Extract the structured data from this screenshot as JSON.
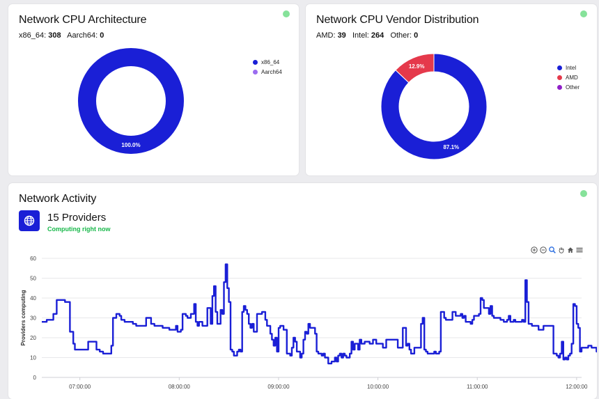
{
  "arch_card": {
    "title": "Network CPU Architecture",
    "stats": [
      {
        "label": "x86_64:",
        "value": "308"
      },
      {
        "label": "Aarch64:",
        "value": "0"
      }
    ]
  },
  "vendor_card": {
    "title": "Network CPU Vendor Distribution",
    "stats": [
      {
        "label": "AMD:",
        "value": "39"
      },
      {
        "label": "Intel:",
        "value": "264"
      },
      {
        "label": "Other:",
        "value": "0"
      }
    ]
  },
  "activity_card": {
    "title": "Network Activity",
    "providers_count": "15 Providers",
    "providers_status": "Computing right now"
  },
  "colors": {
    "primary": "#1a1fd6",
    "amd": "#e5394b",
    "other": "#8f1fc8",
    "aarch": "#9b6cf0",
    "status_green": "#86e29a",
    "computing_text": "#18b84a"
  },
  "chart_data": [
    {
      "type": "pie",
      "title": "",
      "categories": [
        "x86_64",
        "Aarch64"
      ],
      "values": [
        100.0,
        0.0
      ],
      "slice_labels": [
        "100.0%",
        ""
      ],
      "legend_position": "top-right",
      "colors": [
        "#1a1fd6",
        "#9b6cf0"
      ]
    },
    {
      "type": "pie",
      "title": "",
      "categories": [
        "Intel",
        "AMD",
        "Other"
      ],
      "values": [
        87.1,
        12.9,
        0.0
      ],
      "slice_labels": [
        "87.1%",
        "12.9%",
        ""
      ],
      "legend_position": "top-right",
      "colors": [
        "#1a1fd6",
        "#e5394b",
        "#8f1fc8"
      ]
    },
    {
      "type": "line",
      "title": "",
      "xlabel": "",
      "ylabel": "Providers computing",
      "ylim": [
        0,
        60
      ],
      "yticks": [
        "0",
        "10",
        "20",
        "30",
        "40",
        "50",
        "60"
      ],
      "xticks": [
        "07:00:00",
        "08:00:00",
        "09:00:00",
        "10:00:00",
        "11:00:00",
        "12:00:00"
      ],
      "xlim_minutes": [
        -23,
        303
      ],
      "grid": true,
      "series": [
        {
          "color": "#1a1fd6",
          "points": [
            [
              -23,
              28
            ],
            [
              -20,
              29
            ],
            [
              -18,
              29
            ],
            [
              -16,
              32
            ],
            [
              -14,
              39
            ],
            [
              -12,
              39
            ],
            [
              -9,
              38
            ],
            [
              -7,
              38
            ],
            [
              -6,
              23
            ],
            [
              -4,
              17
            ],
            [
              -3,
              14
            ],
            [
              -1,
              14
            ],
            [
              3,
              14
            ],
            [
              5,
              18
            ],
            [
              9,
              18
            ],
            [
              10,
              14
            ],
            [
              12,
              13
            ],
            [
              14,
              12
            ],
            [
              18,
              12
            ],
            [
              19,
              16
            ],
            [
              20,
              30
            ],
            [
              22,
              32
            ],
            [
              24,
              31
            ],
            [
              25,
              29
            ],
            [
              27,
              28
            ],
            [
              30,
              28
            ],
            [
              32,
              27
            ],
            [
              34,
              26
            ],
            [
              38,
              26
            ],
            [
              40,
              30
            ],
            [
              42,
              30
            ],
            [
              43,
              27
            ],
            [
              45,
              26
            ],
            [
              49,
              26
            ],
            [
              50,
              25
            ],
            [
              53,
              25
            ],
            [
              54,
              24
            ],
            [
              57,
              24
            ],
            [
              58,
              26
            ],
            [
              59,
              23
            ],
            [
              61,
              24
            ],
            [
              62,
              32
            ],
            [
              64,
              31
            ],
            [
              65,
              30
            ],
            [
              66,
              30
            ],
            [
              67,
              32
            ],
            [
              69,
              37
            ],
            [
              70,
              28
            ],
            [
              71,
              26
            ],
            [
              72,
              28
            ],
            [
              74,
              26
            ],
            [
              76,
              26
            ],
            [
              77,
              35
            ],
            [
              78,
              35
            ],
            [
              79,
              27
            ],
            [
              80,
              41
            ],
            [
              81,
              46
            ],
            [
              82,
              33
            ],
            [
              83,
              27
            ],
            [
              85,
              34
            ],
            [
              86,
              32
            ],
            [
              87,
              48
            ],
            [
              88,
              57
            ],
            [
              89,
              45
            ],
            [
              90,
              38
            ],
            [
              91,
              14
            ],
            [
              92,
              13
            ],
            [
              93,
              11
            ],
            [
              95,
              13
            ],
            [
              96,
              14
            ],
            [
              97,
              13
            ],
            [
              98,
              33
            ],
            [
              99,
              36
            ],
            [
              100,
              34
            ],
            [
              101,
              32
            ],
            [
              102,
              27
            ],
            [
              103,
              25
            ],
            [
              104,
              27
            ],
            [
              105,
              23
            ],
            [
              107,
              32
            ],
            [
              108,
              32
            ],
            [
              110,
              33
            ],
            [
              112,
              29
            ],
            [
              113,
              26
            ],
            [
              114,
              26
            ],
            [
              115,
              22
            ],
            [
              116,
              19
            ],
            [
              117,
              16
            ],
            [
              118,
              20
            ],
            [
              119,
              13
            ],
            [
              120,
              25
            ],
            [
              121,
              26
            ],
            [
              123,
              24
            ],
            [
              125,
              12
            ],
            [
              127,
              11
            ],
            [
              128,
              15
            ],
            [
              129,
              20
            ],
            [
              130,
              18
            ],
            [
              131,
              13
            ],
            [
              133,
              10
            ],
            [
              134,
              12
            ],
            [
              135,
              19
            ],
            [
              136,
              23
            ],
            [
              137,
              22
            ],
            [
              138,
              27
            ],
            [
              139,
              25
            ],
            [
              141,
              25
            ],
            [
              142,
              22
            ],
            [
              143,
              13
            ],
            [
              144,
              12
            ],
            [
              146,
              11
            ],
            [
              147,
              12
            ],
            [
              148,
              10
            ],
            [
              149,
              10
            ],
            [
              150,
              7
            ],
            [
              152,
              8
            ],
            [
              154,
              10
            ],
            [
              155,
              8
            ],
            [
              156,
              11
            ],
            [
              157,
              12
            ],
            [
              158,
              10
            ],
            [
              159,
              12
            ],
            [
              160,
              11
            ],
            [
              161,
              10
            ],
            [
              163,
              12
            ],
            [
              164,
              18
            ],
            [
              165,
              14
            ],
            [
              166,
              17
            ],
            [
              167,
              17
            ],
            [
              168,
              14
            ],
            [
              169,
              19
            ],
            [
              170,
              17
            ],
            [
              172,
              18
            ],
            [
              175,
              17
            ],
            [
              177,
              19
            ],
            [
              179,
              17
            ],
            [
              181,
              17
            ],
            [
              183,
              15
            ],
            [
              185,
              19
            ],
            [
              190,
              19
            ],
            [
              192,
              15
            ],
            [
              194,
              15
            ],
            [
              195,
              25
            ],
            [
              196,
              25
            ],
            [
              197,
              16
            ],
            [
              198,
              17
            ],
            [
              199,
              14
            ],
            [
              200,
              12
            ],
            [
              202,
              15
            ],
            [
              205,
              15
            ],
            [
              206,
              27
            ],
            [
              207,
              30
            ],
            [
              208,
              14
            ],
            [
              209,
              13
            ],
            [
              210,
              12
            ],
            [
              212,
              12
            ],
            [
              214,
              13
            ],
            [
              215,
              12
            ],
            [
              217,
              13
            ],
            [
              218,
              33
            ],
            [
              219,
              33
            ],
            [
              220,
              30
            ],
            [
              221,
              29
            ],
            [
              223,
              29
            ],
            [
              225,
              33
            ],
            [
              227,
              31
            ],
            [
              228,
              31
            ],
            [
              230,
              32
            ],
            [
              231,
              30
            ],
            [
              232,
              31
            ],
            [
              233,
              28
            ],
            [
              236,
              27
            ],
            [
              237,
              29
            ],
            [
              238,
              31
            ],
            [
              240,
              31
            ],
            [
              241,
              32
            ],
            [
              242,
              40
            ],
            [
              243,
              39
            ],
            [
              244,
              35
            ],
            [
              246,
              35
            ],
            [
              247,
              32
            ],
            [
              248,
              36
            ],
            [
              249,
              31
            ],
            [
              250,
              30
            ],
            [
              253,
              30
            ],
            [
              254,
              29
            ],
            [
              256,
              28
            ],
            [
              258,
              29
            ],
            [
              259,
              31
            ],
            [
              260,
              28
            ],
            [
              262,
              29
            ],
            [
              263,
              28
            ],
            [
              265,
              28
            ],
            [
              267,
              29
            ],
            [
              268,
              28
            ],
            [
              269,
              49
            ],
            [
              270,
              38
            ],
            [
              271,
              27
            ],
            [
              273,
              26
            ],
            [
              276,
              26
            ],
            [
              277,
              24
            ],
            [
              280,
              26
            ],
            [
              285,
              26
            ],
            [
              286,
              12
            ],
            [
              288,
              11
            ],
            [
              289,
              10
            ],
            [
              290,
              12
            ],
            [
              291,
              18
            ],
            [
              292,
              9
            ],
            [
              293,
              10
            ],
            [
              294,
              9
            ],
            [
              295,
              11
            ],
            [
              296,
              12
            ],
            [
              297,
              17
            ],
            [
              298,
              37
            ],
            [
              299,
              36
            ],
            [
              300,
              27
            ],
            [
              301,
              25
            ],
            [
              302,
              13
            ],
            [
              303,
              15
            ],
            [
              306,
              15
            ],
            [
              307,
              16
            ],
            [
              309,
              15
            ],
            [
              312,
              13
            ],
            [
              314,
              15
            ],
            [
              316,
              12
            ],
            [
              318,
              12
            ],
            [
              319,
              21
            ],
            [
              320,
              36
            ],
            [
              321,
              33
            ],
            [
              322,
              15
            ],
            [
              323,
              13
            ],
            [
              324,
              12
            ],
            [
              325,
              21
            ],
            [
              326,
              16
            ],
            [
              328,
              17
            ],
            [
              330,
              17
            ],
            [
              332,
              20
            ],
            [
              333,
              17
            ],
            [
              334,
              17
            ],
            [
              336,
              27
            ],
            [
              337,
              31
            ],
            [
              338,
              22
            ],
            [
              339,
              16
            ],
            [
              340,
              17
            ],
            [
              341,
              20
            ],
            [
              342,
              17
            ],
            [
              344,
              17
            ],
            [
              346,
              16
            ],
            [
              349,
              17
            ],
            [
              351,
              17
            ],
            [
              352,
              16
            ],
            [
              353,
              17
            ],
            [
              355,
              16
            ],
            [
              360,
              16
            ],
            [
              361,
              14
            ],
            [
              362,
              18
            ],
            [
              363,
              20
            ],
            [
              364,
              16
            ],
            [
              365,
              15
            ]
          ]
        }
      ]
    }
  ]
}
